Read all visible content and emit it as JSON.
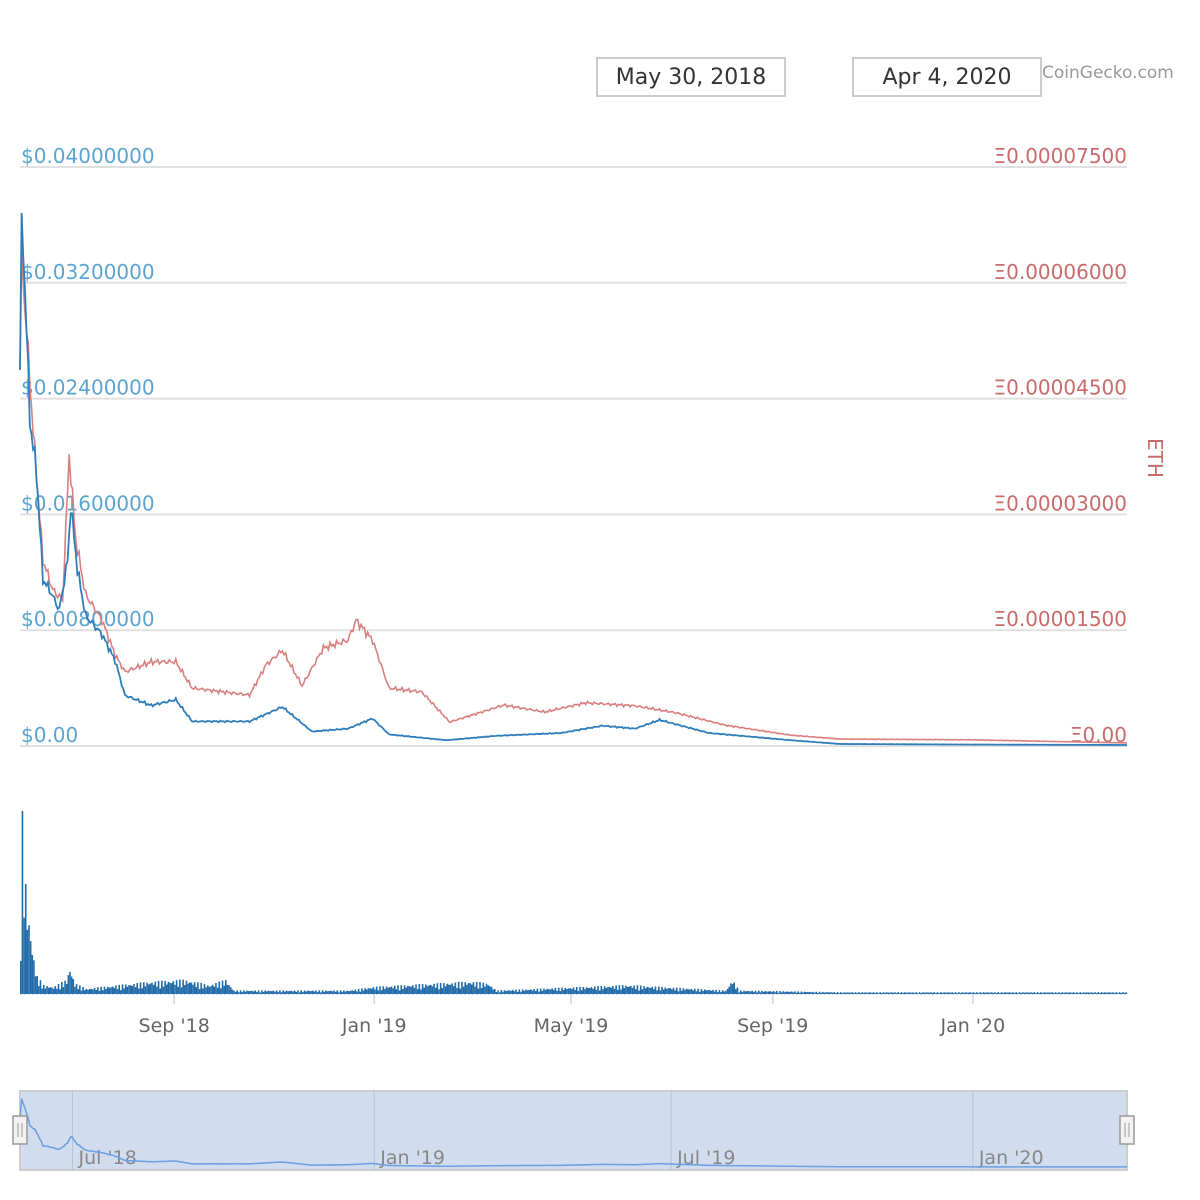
{
  "header": {
    "from_date": "May 30, 2018",
    "to_date": "Apr 4, 2020",
    "credit": "CoinGecko.com"
  },
  "chart_data": {
    "type": "line",
    "x_unit": "days since May 30, 2018",
    "x_range": [
      0,
      675
    ],
    "left_axis": {
      "ylim": [
        0,
        0.04
      ],
      "ticks": [
        "$0.00",
        "$0.00800000",
        "$0.01600000",
        "$0.02400000",
        "$0.03200000",
        "$0.04000000"
      ]
    },
    "right_axis": {
      "title": "ETH",
      "ylim": [
        0,
        7.5e-05
      ],
      "ticks": [
        "Ξ0.00",
        "Ξ0.00001500",
        "Ξ0.00003000",
        "Ξ0.00004500",
        "Ξ0.00006000",
        "Ξ0.00007500"
      ]
    },
    "x_ticks": [
      {
        "label": "Sep '18",
        "day": 94
      },
      {
        "label": "Jan '19",
        "day": 216
      },
      {
        "label": "May '19",
        "day": 336
      },
      {
        "label": "Sep '19",
        "day": 459
      },
      {
        "label": "Jan '20",
        "day": 581
      }
    ],
    "series": [
      {
        "name": "USD",
        "color": "#2f7ebc",
        "points": [
          [
            0,
            0.026
          ],
          [
            1,
            0.036
          ],
          [
            3,
            0.032
          ],
          [
            6,
            0.0225
          ],
          [
            10,
            0.019
          ],
          [
            14,
            0.0115
          ],
          [
            18,
            0.0108
          ],
          [
            24,
            0.0094
          ],
          [
            29,
            0.0128
          ],
          [
            31,
            0.0166
          ],
          [
            35,
            0.0122
          ],
          [
            40,
            0.009
          ],
          [
            50,
            0.0077
          ],
          [
            58,
            0.0059
          ],
          [
            64,
            0.0035
          ],
          [
            80,
            0.0028
          ],
          [
            95,
            0.0032
          ],
          [
            105,
            0.0017
          ],
          [
            140,
            0.0017
          ],
          [
            160,
            0.0027
          ],
          [
            178,
            0.001
          ],
          [
            200,
            0.0012
          ],
          [
            215,
            0.0019
          ],
          [
            225,
            0.0008
          ],
          [
            260,
            0.0004
          ],
          [
            290,
            0.0007
          ],
          [
            330,
            0.0009
          ],
          [
            355,
            0.0014
          ],
          [
            375,
            0.0012
          ],
          [
            390,
            0.0018
          ],
          [
            420,
            0.0009
          ],
          [
            470,
            0.0004
          ],
          [
            500,
            0.00014
          ],
          [
            580,
            0.0001
          ],
          [
            675,
            7e-05
          ]
        ]
      },
      {
        "name": "ETH",
        "color": "#d97f7f",
        "points": [
          [
            0,
            4.87e-05
          ],
          [
            1,
            6.3e-05
          ],
          [
            4,
            5.39e-05
          ],
          [
            8,
            4.09e-05
          ],
          [
            14,
            2.41e-05
          ],
          [
            20,
            2.02e-05
          ],
          [
            26,
            1.89e-05
          ],
          [
            30,
            3.77e-05
          ],
          [
            34,
            2.67e-05
          ],
          [
            40,
            1.96e-05
          ],
          [
            50,
            1.63e-05
          ],
          [
            58,
            1.18e-05
          ],
          [
            64,
            9.6e-06
          ],
          [
            80,
            1.09e-05
          ],
          [
            95,
            1.09e-05
          ],
          [
            105,
            7.5e-06
          ],
          [
            140,
            6.6e-06
          ],
          [
            150,
            1.05e-05
          ],
          [
            160,
            1.24e-05
          ],
          [
            172,
            7.8e-06
          ],
          [
            185,
            1.27e-05
          ],
          [
            200,
            1.37e-05
          ],
          [
            205,
            1.63e-05
          ],
          [
            215,
            1.37e-05
          ],
          [
            225,
            7.5e-06
          ],
          [
            245,
            7e-06
          ],
          [
            262,
            3.1e-06
          ],
          [
            295,
            5.3e-06
          ],
          [
            320,
            4.4e-06
          ],
          [
            345,
            5.6e-06
          ],
          [
            375,
            5.2e-06
          ],
          [
            400,
            4.3e-06
          ],
          [
            430,
            2.7e-06
          ],
          [
            470,
            1.4e-06
          ],
          [
            500,
            9e-07
          ],
          [
            580,
            8e-07
          ],
          [
            675,
            4e-07
          ]
        ]
      }
    ],
    "volume": {
      "color": "#1f6aa8",
      "relative_points": [
        [
          0,
          0.45
        ],
        [
          1,
          1.0
        ],
        [
          2,
          0.75
        ],
        [
          4,
          0.5
        ],
        [
          6,
          0.35
        ],
        [
          8,
          0.2
        ],
        [
          10,
          0.1
        ],
        [
          14,
          0.05
        ],
        [
          20,
          0.04
        ],
        [
          28,
          0.08
        ],
        [
          30,
          0.15
        ],
        [
          33,
          0.06
        ],
        [
          40,
          0.03
        ],
        [
          60,
          0.05
        ],
        [
          80,
          0.07
        ],
        [
          100,
          0.08
        ],
        [
          115,
          0.05
        ],
        [
          125,
          0.08
        ],
        [
          130,
          0.02
        ],
        [
          200,
          0.02
        ],
        [
          215,
          0.04
        ],
        [
          275,
          0.07
        ],
        [
          285,
          0.06
        ],
        [
          290,
          0.02
        ],
        [
          370,
          0.05
        ],
        [
          430,
          0.02
        ],
        [
          434,
          0.08
        ],
        [
          438,
          0.02
        ],
        [
          500,
          0.01
        ],
        [
          675,
          0.01
        ]
      ]
    },
    "navigator": {
      "x_ticks": [
        {
          "label": "Jul '18",
          "day": 32
        },
        {
          "label": "Jan '19",
          "day": 216
        },
        {
          "label": "Jul '19",
          "day": 397
        },
        {
          "label": "Jan '20",
          "day": 581
        }
      ]
    }
  }
}
